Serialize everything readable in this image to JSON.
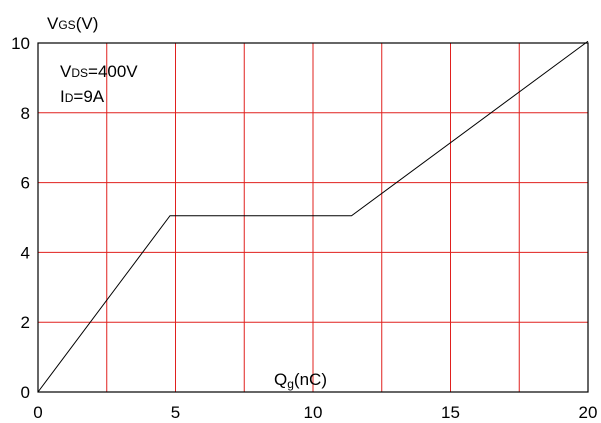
{
  "chart_data": {
    "type": "line",
    "title": "",
    "ylabel": {
      "main": "V",
      "sub": "GS",
      "unit": "(V)"
    },
    "xlabel": {
      "main": "Q",
      "sub": "g",
      "unit": "(nC)"
    },
    "xlim": [
      0,
      20
    ],
    "ylim": [
      0,
      10
    ],
    "xticks": [
      0,
      5,
      10,
      15,
      20
    ],
    "yticks": [
      0,
      2,
      4,
      6,
      8,
      10
    ],
    "xgrid": [
      2.5,
      5,
      7.5,
      10,
      12.5,
      15,
      17.5
    ],
    "ygrid": [
      2,
      4,
      6,
      8
    ],
    "grid": true,
    "colors": {
      "grid": "#e0201e",
      "line": "#000000",
      "frame": "#000000"
    },
    "annotations": [
      {
        "main": "V",
        "sub": "DS",
        "rest": "=400V"
      },
      {
        "main": "I",
        "sub": "D",
        "rest": "=9A"
      }
    ],
    "series": [
      {
        "x": [
          0,
          4.8,
          11.4,
          20
        ],
        "y": [
          0,
          5.05,
          5.05,
          10.05
        ]
      }
    ]
  }
}
